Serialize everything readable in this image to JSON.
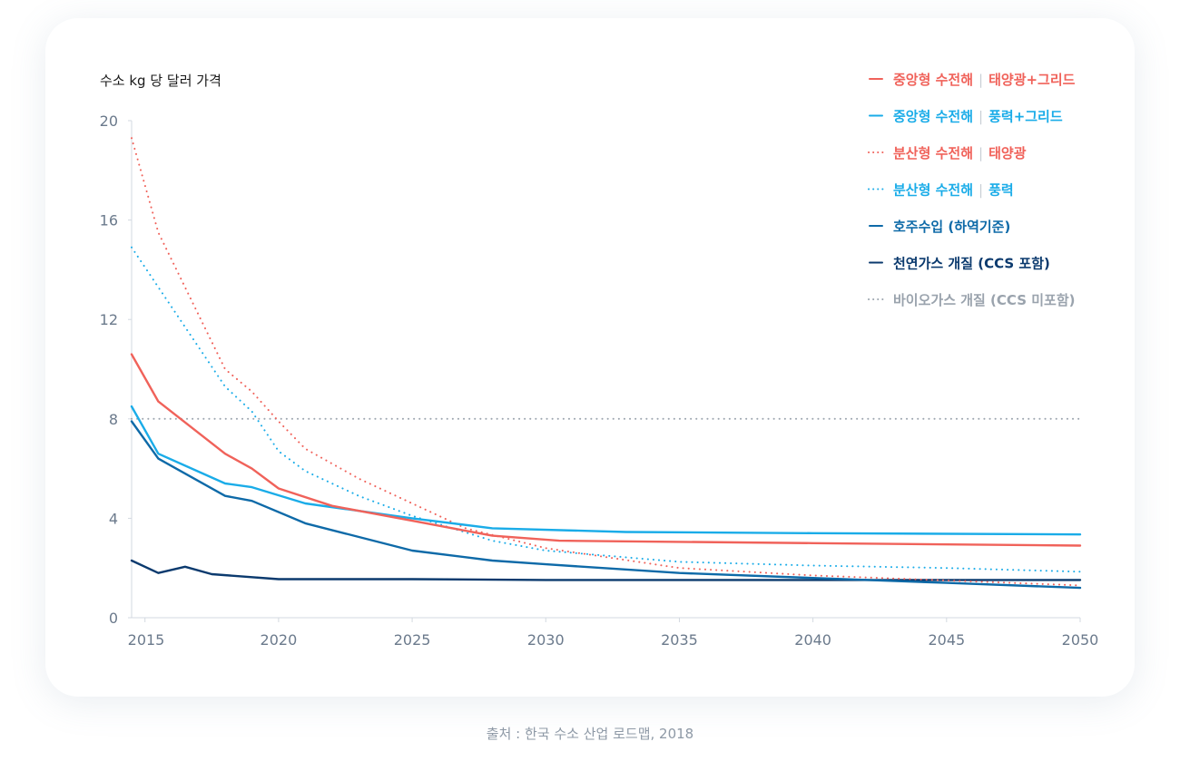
{
  "source": "출처 : 한국 수소 산업 로드맵, 2018",
  "chart_data": {
    "type": "line",
    "title": "",
    "ylabel": "수소 kg 당 달러 가격",
    "xlabel": "",
    "xlim": [
      2014.5,
      2050
    ],
    "ylim": [
      0,
      20
    ],
    "x_ticks": [
      "2015",
      "2020",
      "2025",
      "2030",
      "2035",
      "2040",
      "2045",
      "2050"
    ],
    "y_ticks": [
      "0",
      "4",
      "8",
      "12",
      "16",
      "20"
    ],
    "grid": false,
    "legend_position": "top-right",
    "series": [
      {
        "name": "중앙형 수전해",
        "name_suffix": "태양광+그리드",
        "color": "#f0625a",
        "dash": "solid",
        "points": [
          [
            2014.5,
            10.6
          ],
          [
            2015.5,
            8.7
          ],
          [
            2018,
            6.6
          ],
          [
            2019,
            6.0
          ],
          [
            2020,
            5.2
          ],
          [
            2022,
            4.5
          ],
          [
            2025,
            3.9
          ],
          [
            2028,
            3.3
          ],
          [
            2030.5,
            3.1
          ],
          [
            2040,
            3.0
          ],
          [
            2050,
            2.9
          ]
        ]
      },
      {
        "name": "중앙형 수전해",
        "name_suffix": "풍력+그리드",
        "color": "#1aace8",
        "dash": "solid",
        "points": [
          [
            2014.5,
            8.5
          ],
          [
            2015.5,
            6.6
          ],
          [
            2018,
            5.4
          ],
          [
            2019,
            5.25
          ],
          [
            2021,
            4.6
          ],
          [
            2025,
            4.0
          ],
          [
            2028,
            3.6
          ],
          [
            2033,
            3.45
          ],
          [
            2040,
            3.4
          ],
          [
            2050,
            3.35
          ]
        ]
      },
      {
        "name": "분산형 수전해",
        "name_suffix": "태양광",
        "color": "#f0625a",
        "dash": "dot",
        "points": [
          [
            2014.5,
            19.3
          ],
          [
            2015.5,
            15.5
          ],
          [
            2018,
            10.0
          ],
          [
            2019,
            9.1
          ],
          [
            2020,
            7.9
          ],
          [
            2021,
            6.8
          ],
          [
            2023,
            5.6
          ],
          [
            2025,
            4.6
          ],
          [
            2027,
            3.6
          ],
          [
            2030,
            2.8
          ],
          [
            2035,
            2.0
          ],
          [
            2040,
            1.7
          ],
          [
            2045,
            1.5
          ],
          [
            2050,
            1.3
          ]
        ]
      },
      {
        "name": "분산형 수전해",
        "name_suffix": "풍력",
        "color": "#1aace8",
        "dash": "dot",
        "points": [
          [
            2014.5,
            14.9
          ],
          [
            2015.5,
            13.3
          ],
          [
            2018,
            9.3
          ],
          [
            2019,
            8.3
          ],
          [
            2020,
            6.7
          ],
          [
            2021,
            5.9
          ],
          [
            2023,
            4.9
          ],
          [
            2025,
            4.1
          ],
          [
            2028,
            3.1
          ],
          [
            2030,
            2.7
          ],
          [
            2035,
            2.25
          ],
          [
            2040,
            2.1
          ],
          [
            2045,
            2.0
          ],
          [
            2050,
            1.85
          ]
        ]
      },
      {
        "name": "호주수입 (하역기준)",
        "name_suffix": "",
        "color": "#0e6aa8",
        "dash": "solid",
        "points": [
          [
            2014.5,
            7.9
          ],
          [
            2015.5,
            6.4
          ],
          [
            2018,
            4.9
          ],
          [
            2019,
            4.7
          ],
          [
            2021,
            3.8
          ],
          [
            2025,
            2.7
          ],
          [
            2028,
            2.3
          ],
          [
            2030,
            2.15
          ],
          [
            2035,
            1.8
          ],
          [
            2040,
            1.6
          ],
          [
            2045,
            1.4
          ],
          [
            2050,
            1.2
          ]
        ]
      },
      {
        "name": "천연가스 개질 (CCS 포함)",
        "name_suffix": "",
        "color": "#0b3a6e",
        "dash": "solid",
        "points": [
          [
            2014.5,
            2.3
          ],
          [
            2015.5,
            1.8
          ],
          [
            2016.5,
            2.05
          ],
          [
            2017.5,
            1.75
          ],
          [
            2020,
            1.55
          ],
          [
            2025,
            1.55
          ],
          [
            2030,
            1.52
          ],
          [
            2040,
            1.52
          ],
          [
            2050,
            1.52
          ]
        ]
      },
      {
        "name": "바이오가스 개질 (CCS 미포함)",
        "name_suffix": "",
        "color": "#9aa3ad",
        "dash": "dot",
        "points": [
          [
            2014.5,
            8.0
          ],
          [
            2050,
            8.0
          ]
        ]
      }
    ]
  }
}
